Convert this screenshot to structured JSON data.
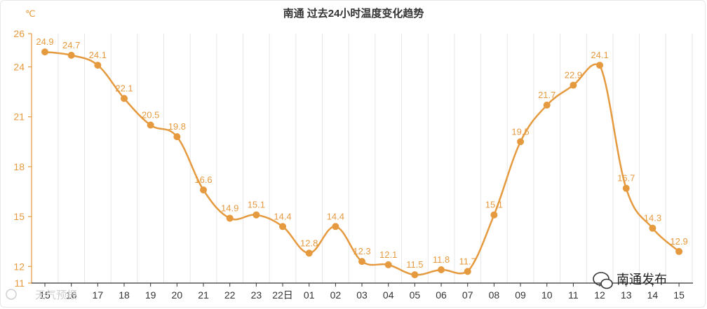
{
  "chart_data": {
    "type": "line",
    "title": "南通 过去24小时温度变化趋势",
    "unit": "℃",
    "categories": [
      "15",
      "16",
      "17",
      "18",
      "19",
      "20",
      "21",
      "22",
      "23",
      "22日",
      "01",
      "02",
      "03",
      "04",
      "05",
      "06",
      "07",
      "08",
      "09",
      "10",
      "11",
      "12",
      "13",
      "14",
      "15"
    ],
    "values": [
      24.9,
      24.7,
      24.1,
      22.1,
      20.5,
      19.8,
      16.6,
      14.9,
      15.1,
      14.4,
      12.8,
      14.4,
      12.3,
      12.1,
      11.5,
      11.8,
      11.7,
      15.1,
      19.5,
      21.7,
      22.9,
      24.1,
      16.7,
      14.3,
      12.9
    ],
    "y_ticks": [
      "11",
      "12",
      "15",
      "18",
      "21",
      "24",
      "26"
    ],
    "ylim": [
      11,
      26
    ],
    "grid": "vertical",
    "line_color": "#e69a3f"
  },
  "watermarks": {
    "right": "南通发布",
    "left": "天气预报"
  }
}
